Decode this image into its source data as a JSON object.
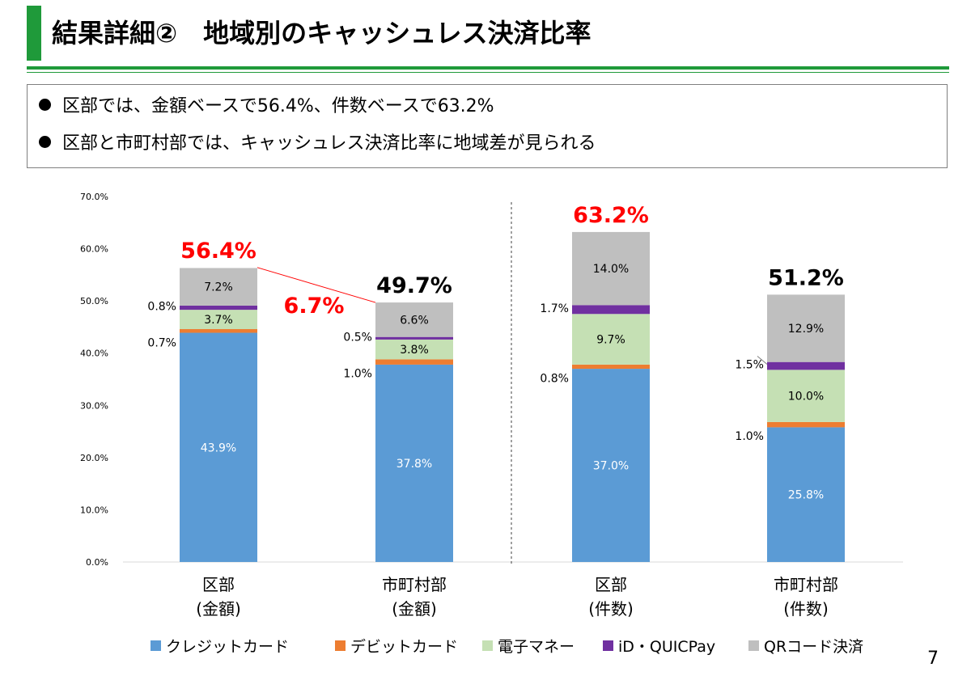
{
  "slide": {
    "title": "結果詳細②　地域別のキャッシュレス決済比率",
    "page_number": "7",
    "accent_color": "#1f9a3a"
  },
  "summary": {
    "bullets": [
      "区部では、金額ベースで56.4%、件数ベースで63.2%",
      "区部と市町村部では、キャッシュレス決済比率に地域差が見られる"
    ]
  },
  "chart_data": {
    "type": "bar",
    "stacked": true,
    "categories": [
      [
        "区部",
        "(金額)"
      ],
      [
        "市町村部",
        "(金額)"
      ],
      [
        "区部",
        "(件数)"
      ],
      [
        "市町村部",
        "(件数)"
      ]
    ],
    "series": [
      {
        "name": "クレジットカード",
        "color": "#5b9bd5",
        "values": [
          43.9,
          37.8,
          37.0,
          25.8
        ],
        "labels": [
          "43.9%",
          "37.8%",
          "37.0%",
          "25.8%"
        ]
      },
      {
        "name": "デビットカード",
        "color": "#ed7d31",
        "values": [
          0.7,
          1.0,
          0.8,
          1.0
        ],
        "labels": [
          "0.7%",
          "1.0%",
          "0.8%",
          "1.0%"
        ]
      },
      {
        "name": "電子マネー",
        "color": "#c5e0b4",
        "values": [
          3.7,
          3.8,
          9.7,
          10.0
        ],
        "labels": [
          "3.7%",
          "3.8%",
          "9.7%",
          "10.0%"
        ]
      },
      {
        "name": "iD・QUICPay",
        "color": "#7030a0",
        "values": [
          0.8,
          0.5,
          1.7,
          1.5
        ],
        "labels": [
          "0.8%",
          "0.5%",
          "1.7%",
          "1.5%"
        ]
      },
      {
        "name": "QRコード決済",
        "color": "#bfbfbf",
        "values": [
          7.2,
          6.6,
          14.0,
          12.9
        ],
        "labels": [
          "7.2%",
          "6.6%",
          "14.0%",
          "12.9%"
        ]
      }
    ],
    "totals": [
      56.4,
      49.7,
      63.2,
      51.2
    ],
    "total_labels": [
      "56.4%",
      "49.7%",
      "63.2%",
      "51.2%"
    ],
    "total_colors": [
      "#ff0000",
      "#000000",
      "#ff0000",
      "#000000"
    ],
    "difference_annotation": {
      "text": "6.7%",
      "from_category": 0,
      "to_category": 1,
      "color": "#ff0000"
    },
    "ylim": [
      0,
      70
    ],
    "y_ticks": [
      0,
      10,
      20,
      30,
      40,
      50,
      60,
      70
    ],
    "y_tick_labels": [
      "0.0%",
      "10.0%",
      "20.0%",
      "30.0%",
      "40.0%",
      "50.0%",
      "60.0%",
      "70.0%"
    ],
    "legend_position": "bottom",
    "divider_between": [
      1,
      2
    ]
  }
}
